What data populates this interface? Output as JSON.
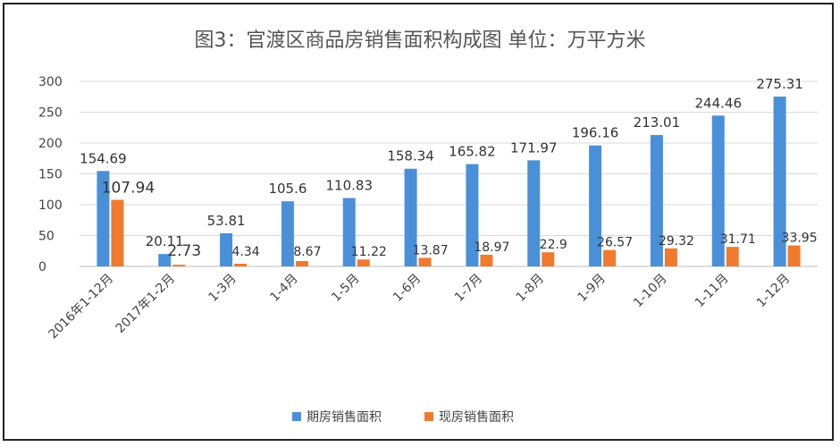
{
  "chart_data": {
    "type": "bar",
    "title": "图3：官渡区商品房销售面积构成图 单位：万平方米",
    "categories": [
      "2016年1-12月",
      "2017年1-2月",
      "1-3月",
      "1-4月",
      "1-5月",
      "1-6月",
      "1-7月",
      "1-8月",
      "1-9月",
      "1-10月",
      "1-11月",
      "1-12月"
    ],
    "series": [
      {
        "name": "期房销售面积",
        "color": "#4A90D9",
        "values": [
          154.69,
          20.11,
          53.81,
          105.6,
          110.83,
          158.34,
          165.82,
          171.97,
          196.16,
          213.01,
          244.46,
          275.31
        ],
        "labels": [
          "154.69",
          "20.11",
          "53.81",
          "105.6",
          "110.83",
          "158.34",
          "165.82",
          "171.97",
          "196.16",
          "213.01",
          "244.46",
          "275.31"
        ]
      },
      {
        "name": "现房销售面积",
        "color": "#F07A2E",
        "values": [
          107.94,
          2.73,
          4.34,
          8.67,
          11.22,
          13.87,
          18.97,
          22.9,
          26.57,
          29.32,
          31.71,
          33.95
        ],
        "labels": [
          "107.94",
          "2.73",
          "4.34",
          "8.67",
          "11.22",
          "13.87",
          "18.97",
          "22.9",
          "26.57",
          "29.32",
          "31.71",
          "33.95"
        ]
      }
    ],
    "ylim": [
      0,
      300
    ],
    "yticks": [
      0,
      50,
      100,
      150,
      200,
      250,
      300
    ],
    "grid": true,
    "legend": "bottom"
  }
}
